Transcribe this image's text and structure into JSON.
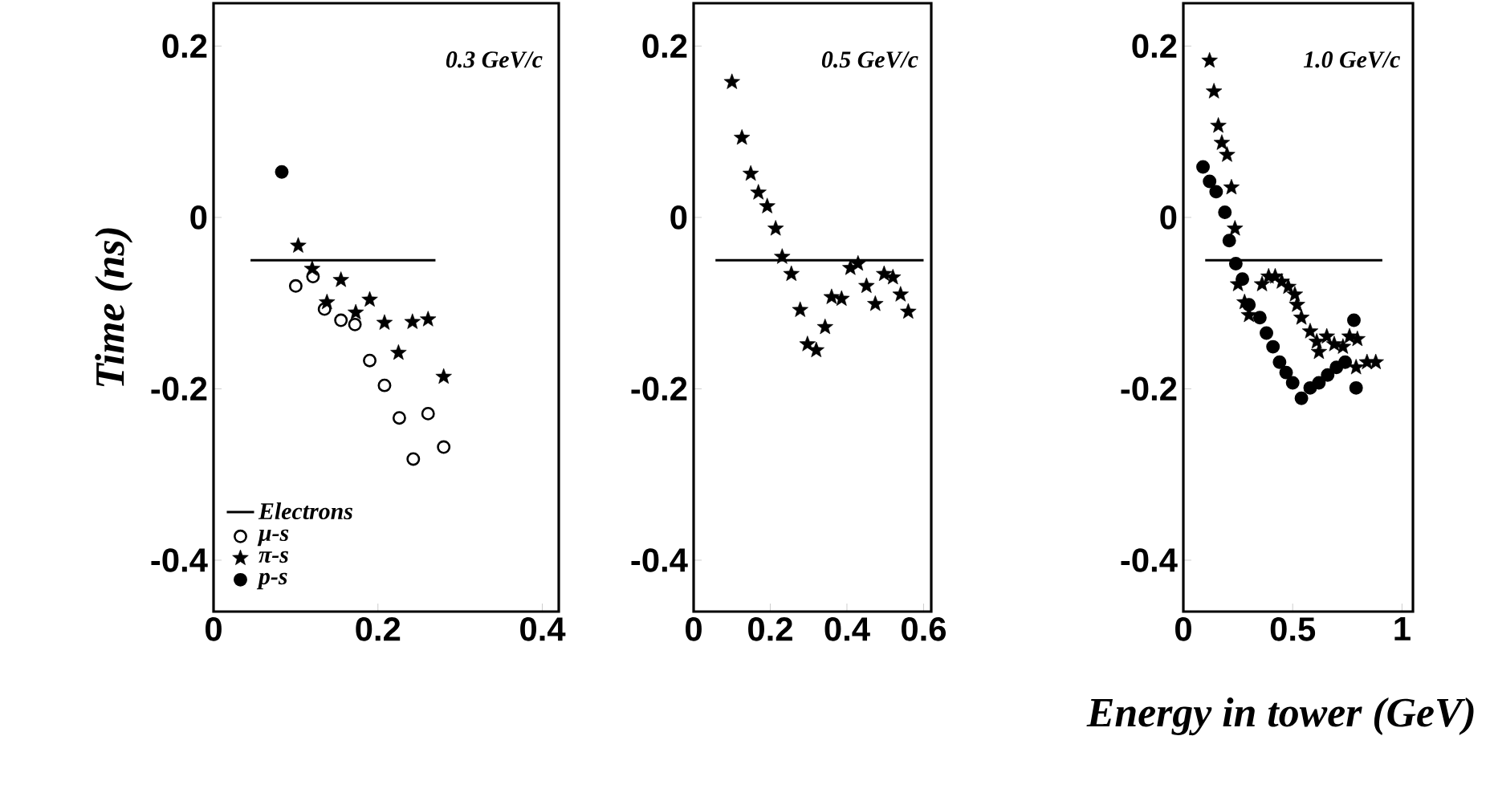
{
  "chart_data": [
    {
      "type": "scatter",
      "ylabel": "Time (ns)",
      "annotations": [
        "0.3 GeV/c"
      ],
      "xlim": [
        0,
        0.42
      ],
      "xticks": [
        0,
        0.2,
        0.4
      ],
      "ylim": [
        -0.46,
        0.25
      ],
      "yticks": [
        0.2,
        0,
        -0.2,
        -0.4
      ],
      "legend": "bottom left",
      "series": [
        {
          "name": "Electrons",
          "type": "line",
          "color": "#000000",
          "marker": "none",
          "x": [
            0.045,
            0.27
          ],
          "values": [
            -0.05,
            -0.05
          ]
        },
        {
          "name": "μ-s",
          "color": "#000000",
          "marker": "circle-open",
          "x": [
            0.1,
            0.121,
            0.135,
            0.155,
            0.172,
            0.19,
            0.208,
            0.226,
            0.261,
            0.243,
            0.28
          ],
          "values": [
            -0.08,
            -0.069,
            -0.107,
            -0.12,
            -0.125,
            -0.167,
            -0.196,
            -0.234,
            -0.229,
            -0.282,
            -0.268
          ]
        },
        {
          "name": "π-s",
          "color": "#000000",
          "marker": "star",
          "x": [
            0.103,
            0.12,
            0.155,
            0.138,
            0.173,
            0.19,
            0.208,
            0.242,
            0.261,
            0.225,
            0.28
          ],
          "values": [
            -0.033,
            -0.06,
            -0.073,
            -0.099,
            -0.111,
            -0.096,
            -0.123,
            -0.122,
            -0.119,
            -0.158,
            -0.186
          ]
        },
        {
          "name": "p-s",
          "color": "#000000",
          "marker": "circle",
          "x": [
            0.083
          ],
          "values": [
            0.053
          ]
        }
      ]
    },
    {
      "type": "scatter",
      "annotations": [
        "0.5 GeV/c"
      ],
      "xlim": [
        0,
        0.62
      ],
      "xticks": [
        0,
        0.2,
        0.4,
        0.6
      ],
      "ylim": [
        -0.46,
        0.25
      ],
      "yticks": [
        0.2,
        0,
        -0.2,
        -0.4
      ],
      "series": [
        {
          "type": "line",
          "color": "#000000",
          "marker": "none",
          "x": [
            0.057,
            0.6
          ],
          "values": [
            -0.05,
            -0.05
          ]
        },
        {
          "color": "#000000",
          "marker": "star",
          "x": [
            0.1,
            0.126,
            0.149,
            0.169,
            0.192,
            0.214,
            0.231,
            0.255,
            0.278,
            0.297,
            0.32,
            0.343,
            0.36,
            0.386,
            0.409,
            0.429,
            0.451,
            0.474,
            0.497,
            0.52,
            0.54,
            0.56
          ],
          "values": [
            0.158,
            0.093,
            0.051,
            0.029,
            0.013,
            -0.013,
            -0.046,
            -0.066,
            -0.108,
            -0.148,
            -0.155,
            -0.128,
            -0.093,
            -0.095,
            -0.059,
            -0.054,
            -0.08,
            -0.101,
            -0.066,
            -0.07,
            -0.09,
            -0.11
          ]
        }
      ]
    },
    {
      "type": "scatter",
      "xlabel": "Energy in tower (GeV)",
      "annotations": [
        "1.0 GeV/c"
      ],
      "xlim": [
        0,
        1.05
      ],
      "xticks": [
        0,
        0.5,
        1
      ],
      "ylim": [
        -0.46,
        0.25
      ],
      "yticks": [
        0.2,
        0,
        -0.2,
        -0.4
      ],
      "series": [
        {
          "type": "line",
          "color": "#000000",
          "marker": "none",
          "x": [
            0.1,
            0.91
          ],
          "values": [
            -0.05,
            -0.05
          ]
        },
        {
          "color": "#000000",
          "marker": "star",
          "x": [
            0.12,
            0.14,
            0.16,
            0.176,
            0.2,
            0.22,
            0.236,
            0.25,
            0.28,
            0.3,
            0.36,
            0.39,
            0.42,
            0.45,
            0.48,
            0.51,
            0.52,
            0.54,
            0.58,
            0.61,
            0.62,
            0.656,
            0.69,
            0.73,
            0.76,
            0.796,
            0.79,
            0.84,
            0.88
          ],
          "values": [
            0.183,
            0.147,
            0.107,
            0.087,
            0.073,
            0.035,
            -0.013,
            -0.078,
            -0.099,
            -0.114,
            -0.078,
            -0.069,
            -0.069,
            -0.075,
            -0.081,
            -0.09,
            -0.102,
            -0.117,
            -0.133,
            -0.145,
            -0.157,
            -0.139,
            -0.148,
            -0.151,
            -0.139,
            -0.142,
            -0.175,
            -0.169,
            -0.169
          ]
        },
        {
          "color": "#000000",
          "marker": "circle",
          "x": [
            0.09,
            0.12,
            0.15,
            0.19,
            0.21,
            0.24,
            0.27,
            0.3,
            0.35,
            0.38,
            0.41,
            0.44,
            0.47,
            0.5,
            0.54,
            0.58,
            0.62,
            0.66,
            0.7,
            0.74,
            0.78,
            0.79
          ],
          "values": [
            0.059,
            0.042,
            0.03,
            0.006,
            -0.027,
            -0.054,
            -0.072,
            -0.102,
            -0.117,
            -0.135,
            -0.151,
            -0.169,
            -0.181,
            -0.193,
            -0.211,
            -0.199,
            -0.193,
            -0.184,
            -0.175,
            -0.169,
            -0.12,
            -0.199
          ]
        }
      ]
    }
  ]
}
